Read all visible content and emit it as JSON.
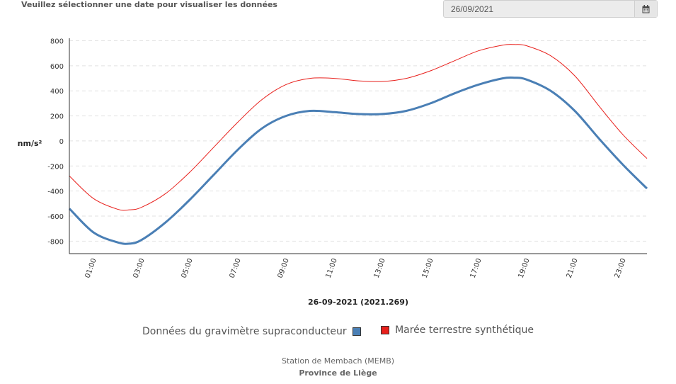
{
  "header": {
    "prompt": "Veuillez sélectionner une date pour visualiser les données",
    "date_value": "26/09/2021",
    "calendar_icon": "calendar-icon"
  },
  "chart_data": {
    "type": "line",
    "xlabel": "26-09-2021 (2021.269)",
    "ylabel": "nm/s²",
    "ylim": [
      -900,
      820
    ],
    "xlim": [
      0.0,
      24.0
    ],
    "x_ticks": [
      "01:00",
      "03:00",
      "05:00",
      "07:00",
      "09:00",
      "11:00",
      "13:00",
      "15:00",
      "17:00",
      "19:00",
      "21:00",
      "23:00"
    ],
    "y_ticks": [
      800,
      600,
      400,
      200,
      0,
      -200,
      -400,
      -600,
      -800
    ],
    "grid": "horizontal-dashed",
    "legend_position": "bottom",
    "series": [
      {
        "name": "Données du gravimètre supraconducteur",
        "color": "#4a7fb5",
        "x": [
          0.0,
          1.0,
          2.0,
          2.5,
          3.0,
          4.0,
          5.0,
          6.0,
          7.0,
          8.0,
          9.0,
          10.0,
          11.0,
          12.0,
          13.0,
          14.0,
          15.0,
          16.0,
          17.0,
          18.0,
          18.5,
          19.0,
          20.0,
          21.0,
          22.0,
          23.0,
          24.0
        ],
        "values": [
          -540,
          -730,
          -810,
          -820,
          -790,
          -650,
          -470,
          -270,
          -70,
          100,
          200,
          240,
          230,
          215,
          215,
          240,
          300,
          380,
          450,
          500,
          505,
          490,
          400,
          240,
          20,
          -190,
          -380
        ]
      },
      {
        "name": "Marée terrestre synthétique",
        "color": "#e8201c",
        "x": [
          0.0,
          1.0,
          2.0,
          2.5,
          3.0,
          4.0,
          5.0,
          6.0,
          7.0,
          8.0,
          9.0,
          10.0,
          11.0,
          12.0,
          13.0,
          14.0,
          15.0,
          16.0,
          17.0,
          18.0,
          18.5,
          19.0,
          20.0,
          21.0,
          22.0,
          23.0,
          24.0
        ],
        "values": [
          -280,
          -460,
          -545,
          -550,
          -530,
          -420,
          -250,
          -50,
          150,
          330,
          450,
          500,
          500,
          480,
          475,
          500,
          560,
          640,
          720,
          765,
          770,
          760,
          680,
          520,
          280,
          50,
          -140
        ]
      }
    ]
  },
  "footer": {
    "station": "Station de Membach (MEMB)",
    "province": "Province de Liège"
  }
}
